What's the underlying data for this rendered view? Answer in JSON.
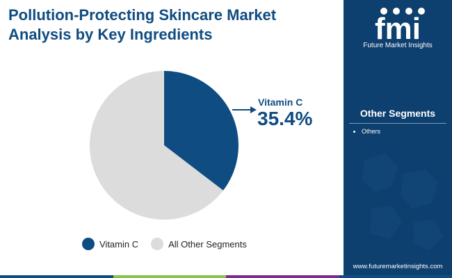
{
  "title": "Pollution-Protecting Skincare Market Analysis by Key Ingredients",
  "chart_data": {
    "type": "pie",
    "categories": [
      "Vitamin C",
      "All Other Segments"
    ],
    "values": [
      35.4,
      64.6
    ],
    "colors": [
      "#0f4c81",
      "#dcdcdc"
    ],
    "callout": {
      "label": "Vitamin C",
      "value": "35.4%"
    },
    "legend": {
      "placement": "bottom",
      "entries": [
        "Vitamin C",
        "All Other Segments"
      ]
    }
  },
  "side_panel": {
    "logo_text": "fmi",
    "logo_caption": "Future Market Insights",
    "heading": "Other Segments",
    "items": [
      "Others"
    ],
    "website": "www.futuremarketinsights.com",
    "background_color": "#0d3f6f"
  },
  "bottom_bar_colors": [
    "#0f4c81",
    "#8bc34a",
    "#7b2c8e",
    "#0f4c81"
  ]
}
